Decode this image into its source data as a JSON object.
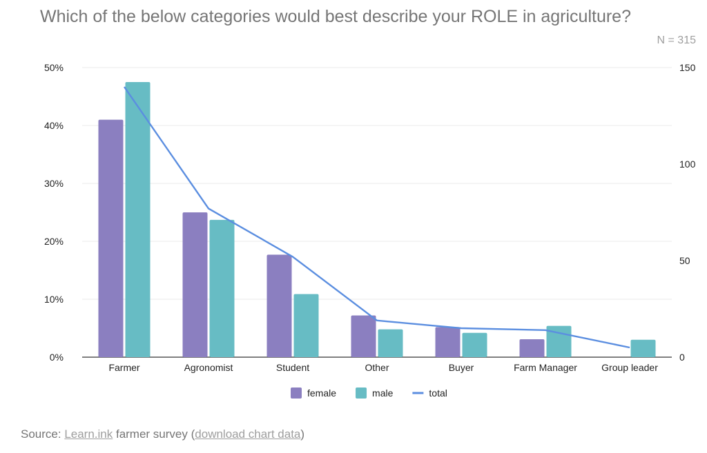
{
  "chart_data": {
    "type": "bar",
    "title": "Which of the below categories would best describe your ROLE in agriculture?",
    "note": "N = 315",
    "categories": [
      "Farmer",
      "Agronomist",
      "Student",
      "Other",
      "Buyer",
      "Farm Manager",
      "Group leader"
    ],
    "series": [
      {
        "name": "female",
        "type": "bar",
        "axis": "left",
        "color": "#8b7fc0",
        "values": [
          41,
          25,
          17.7,
          7.2,
          5.2,
          3.1,
          0
        ]
      },
      {
        "name": "male",
        "type": "bar",
        "axis": "left",
        "color": "#67bcc4",
        "values": [
          47.5,
          23.7,
          10.9,
          4.8,
          4.2,
          5.4,
          3
        ]
      },
      {
        "name": "total",
        "type": "line",
        "axis": "right",
        "color": "#5b8ee0",
        "values": [
          140,
          77,
          52,
          19,
          15,
          14,
          5
        ]
      }
    ],
    "y_left": {
      "ylim": [
        0,
        50
      ],
      "ticks": [
        "0%",
        "10%",
        "20%",
        "30%",
        "40%",
        "50%"
      ]
    },
    "y_right": {
      "ylim": [
        0,
        150
      ],
      "ticks": [
        "0",
        "50",
        "100",
        "150"
      ]
    },
    "legend_position": "bottom",
    "grid": true
  },
  "source": {
    "prefix": "Source: ",
    "link1": "Learn.ink",
    "middle": " farmer survey (",
    "link2": "download chart data",
    "suffix": ")"
  }
}
